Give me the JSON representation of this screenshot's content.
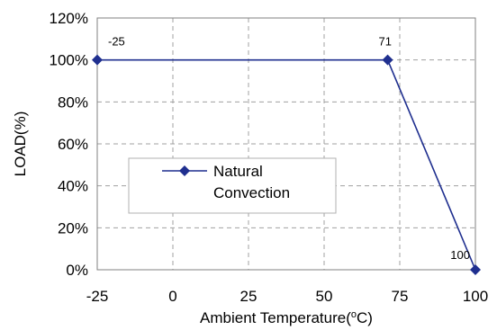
{
  "chart_data": {
    "type": "line",
    "xlabel": "Ambient Temperature(",
    "xlabel_unit_sup": "o",
    "xlabel_unit": "C)",
    "ylabel": "LOAD(%)",
    "xlim": [
      -25,
      100
    ],
    "ylim": [
      0,
      120
    ],
    "x_ticks": [
      "-25",
      "0",
      "25",
      "50",
      "75",
      "100"
    ],
    "y_ticks": [
      "0%",
      "20%",
      "40%",
      "60%",
      "80%",
      "100%",
      "120%"
    ],
    "grid": true,
    "series": [
      {
        "name": "Natural Convection",
        "name_lines": [
          "Natural",
          "Convection"
        ],
        "x": [
          -25,
          71,
          100
        ],
        "y": [
          100,
          100,
          0
        ],
        "point_labels": [
          "-25",
          "71",
          "100"
        ]
      }
    ],
    "legend": "center-left",
    "colors": {
      "series": "#1f2f8f",
      "grid": "#a0a0a0",
      "axis": "#808080"
    }
  }
}
